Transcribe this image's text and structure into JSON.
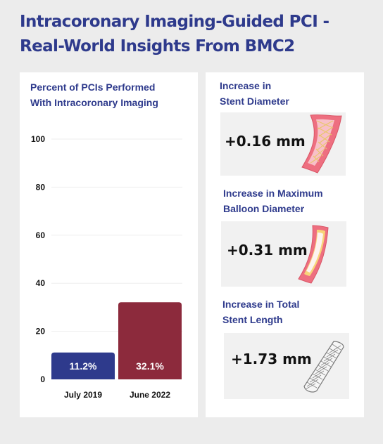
{
  "title": {
    "line1": "Intracoronary Imaging-Guided PCI -",
    "line2": "Real-World Insights From BMC2"
  },
  "chart_title": {
    "line1": "Percent of PCIs Performed",
    "line2": "With Intracoronary Imaging"
  },
  "chart_data": {
    "type": "bar",
    "title": "Percent of PCIs Performed With Intracoronary Imaging",
    "categories": [
      "July 2019",
      "June 2022"
    ],
    "values": [
      11.2,
      32.1
    ],
    "data_labels": [
      "11.2%",
      "32.1%"
    ],
    "bar_colors": [
      "#2e3a8c",
      "#8c2a3c"
    ],
    "ylim": [
      0,
      100
    ],
    "yticks": [
      0,
      20,
      40,
      60,
      80,
      100
    ],
    "xlabel": "",
    "ylabel": "",
    "grid": true
  },
  "stats": [
    {
      "line1": "Increase in",
      "line2": "Stent Diameter",
      "value": "+0.16 mm",
      "icon": "stent-vessel-icon"
    },
    {
      "line1": "Increase in Maximum",
      "line2": "Balloon Diameter",
      "value": "+0.31 mm",
      "icon": "balloon-vessel-icon"
    },
    {
      "line1": "Increase in Total",
      "line2": "Stent Length",
      "value": "+1.73 mm",
      "icon": "mesh-stent-icon"
    }
  ]
}
